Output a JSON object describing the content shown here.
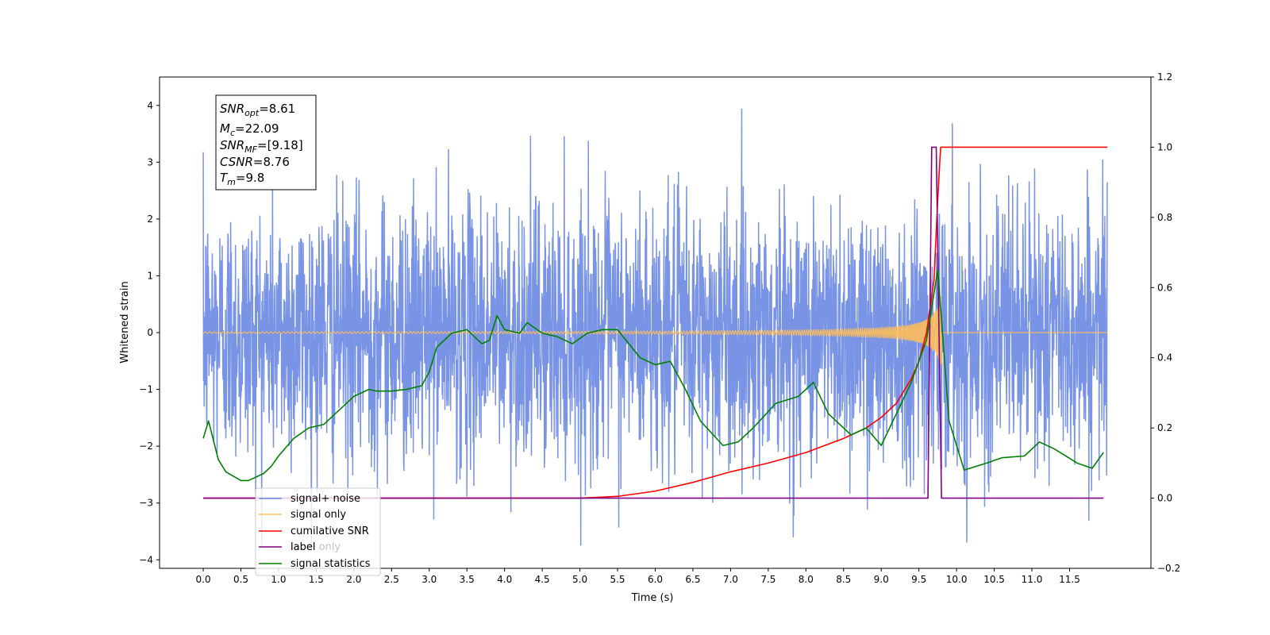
{
  "chart_data": {
    "type": "line",
    "title": "",
    "xlabel": "Time (s)",
    "ylabel": "Whitened strain",
    "y2label": "",
    "xlim": [
      -0.58,
      12.58
    ],
    "ylim": [
      -4.15,
      4.5
    ],
    "y2lim": [
      -0.2,
      1.2
    ],
    "x_ticks": [
      "0.0",
      "0.5",
      "1.0",
      "1.5",
      "2.0",
      "2.5",
      "3.0",
      "3.5",
      "4.0",
      "4.5",
      "5.0",
      "5.5",
      "6.0",
      "6.5",
      "7.0",
      "7.5",
      "8.0",
      "8.5",
      "9.0",
      "9.5",
      "10.0",
      "10.5",
      "11.0",
      "11.5"
    ],
    "y_ticks": [
      "4",
      "3",
      "2",
      "1",
      "0",
      "−1",
      "−2",
      "−3",
      "−4"
    ],
    "y2_ticks": [
      "1.2",
      "1.0",
      "0.8",
      "0.6",
      "0.4",
      "0.2",
      "0.0",
      "−0.2"
    ],
    "info_box": {
      "snr_opt": {
        "base": "SNR",
        "sub": "opt",
        "value": "=8.61"
      },
      "mc": {
        "base": "M",
        "sub": "c",
        "value": "=22.09"
      },
      "snr_mf": {
        "base": "SNR",
        "sub": "MF",
        "value": "=[9.18]"
      },
      "csnr": {
        "base": "CSNR",
        "sub": "",
        "value": "=8.76"
      },
      "tm": {
        "base": "T",
        "sub": "m",
        "value": "=9.8"
      }
    },
    "legend": {
      "placement": "lower-left",
      "entries": [
        {
          "label": "signal+ noise",
          "color": "#6a87e2"
        },
        {
          "label": "signal only",
          "color": "#ffbf5a"
        },
        {
          "label": "cumilative SNR",
          "color": "#ff0000"
        },
        {
          "label": "label",
          "color": "#800080"
        },
        {
          "label": "signal statistics",
          "color": "#008000"
        }
      ],
      "overlapped_text": "label only"
    },
    "series": [
      {
        "name": "signal+ noise",
        "axis": "left",
        "color": "#6a87e2",
        "description": "noise band roughly ±2 whitened strain over 0–12 s, peaks up to 4.1 and down to -3.75",
        "x_range": [
          0.0,
          12.0
        ],
        "approx_std": 1.15,
        "peak_max": 4.12,
        "peak_min": -3.75
      },
      {
        "name": "signal only",
        "axis": "left",
        "color": "#ffbf5a",
        "description": "chirp growing in amplitude until merger near 9.8 s",
        "x_range": [
          0.0,
          12.0
        ],
        "merger_time": 9.8,
        "max_amplitude": 0.75
      },
      {
        "name": "cumilative SNR",
        "axis": "right",
        "color": "#ff0000",
        "x": [
          0.0,
          5.0,
          5.5,
          6.0,
          6.5,
          7.0,
          7.5,
          8.0,
          8.5,
          8.8,
          9.0,
          9.2,
          9.4,
          9.5,
          9.6,
          9.7,
          9.75,
          9.78,
          9.79,
          12.0
        ],
        "y": [
          0.0,
          0.0,
          0.005,
          0.02,
          0.045,
          0.075,
          0.1,
          0.13,
          0.17,
          0.2,
          0.23,
          0.27,
          0.34,
          0.39,
          0.47,
          0.62,
          0.85,
          0.97,
          1.0,
          1.0
        ]
      },
      {
        "name": "label",
        "axis": "right",
        "color": "#800080",
        "x": [
          0.0,
          9.62,
          9.67,
          9.73,
          9.8,
          11.95
        ],
        "y": [
          0.0,
          0.0,
          1.0,
          1.0,
          0.0,
          0.0
        ]
      },
      {
        "name": "signal statistics",
        "axis": "right",
        "color": "#008000",
        "x": [
          0.0,
          0.07,
          0.2,
          0.3,
          0.5,
          0.6,
          0.8,
          0.9,
          1.0,
          1.2,
          1.4,
          1.6,
          1.8,
          1.9,
          2.0,
          2.2,
          2.3,
          2.5,
          2.7,
          2.9,
          3.0,
          3.1,
          3.3,
          3.5,
          3.7,
          3.8,
          3.9,
          4.0,
          4.2,
          4.3,
          4.5,
          4.7,
          4.9,
          5.1,
          5.3,
          5.5,
          5.8,
          6.0,
          6.2,
          6.4,
          6.6,
          6.9,
          7.1,
          7.3,
          7.6,
          7.9,
          8.1,
          8.3,
          8.6,
          8.8,
          9.0,
          9.2,
          9.4,
          9.6,
          9.75,
          9.9,
          10.1,
          10.4,
          10.6,
          10.9,
          11.1,
          11.3,
          11.6,
          11.8,
          11.95
        ],
        "y": [
          0.17,
          0.22,
          0.11,
          0.075,
          0.05,
          0.05,
          0.07,
          0.09,
          0.12,
          0.17,
          0.2,
          0.21,
          0.25,
          0.27,
          0.29,
          0.31,
          0.305,
          0.305,
          0.31,
          0.32,
          0.36,
          0.43,
          0.47,
          0.48,
          0.44,
          0.45,
          0.52,
          0.48,
          0.47,
          0.5,
          0.47,
          0.46,
          0.44,
          0.47,
          0.48,
          0.48,
          0.4,
          0.38,
          0.39,
          0.31,
          0.22,
          0.15,
          0.16,
          0.2,
          0.27,
          0.29,
          0.33,
          0.24,
          0.18,
          0.2,
          0.15,
          0.24,
          0.33,
          0.45,
          0.65,
          0.22,
          0.08,
          0.1,
          0.115,
          0.12,
          0.16,
          0.14,
          0.1,
          0.085,
          0.13
        ]
      }
    ]
  }
}
